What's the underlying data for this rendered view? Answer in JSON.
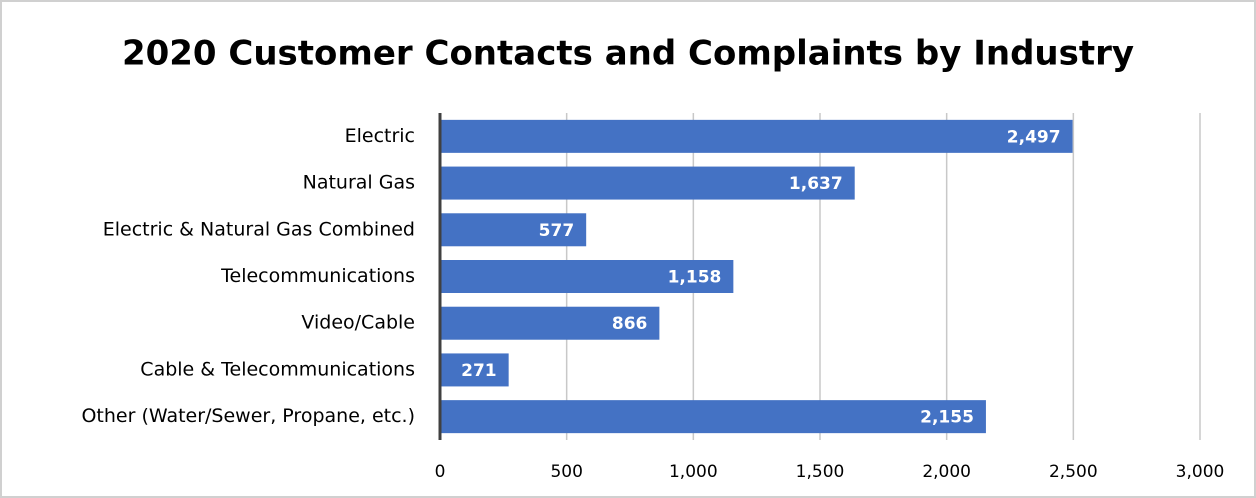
{
  "chart_data": {
    "type": "bar",
    "orientation": "horizontal",
    "title": "2020 Customer Contacts and Complaints by Industry",
    "categories": [
      "Electric",
      "Natural Gas",
      "Electric & Natural Gas Combined",
      "Telecommunications",
      "Video/Cable",
      "Cable & Telecommunications",
      "Other (Water/Sewer, Propane, etc.)"
    ],
    "values": [
      2497,
      1637,
      577,
      1158,
      866,
      271,
      2155
    ],
    "value_labels": [
      "2,497",
      "1,637",
      "577",
      "1,158",
      "866",
      "271",
      "2,155"
    ],
    "color": "#4472c4",
    "xlim": [
      0,
      3000
    ],
    "xticks": [
      0,
      500,
      {
        "value": 1000,
        "label": "1,000"
      },
      {
        "value": 1500,
        "label": "1,500"
      },
      {
        "value": 2000,
        "label": "2,000"
      },
      {
        "value": 2500,
        "label": "2,500"
      },
      {
        "value": 3000,
        "label": "3,000"
      }
    ],
    "grid": true
  }
}
